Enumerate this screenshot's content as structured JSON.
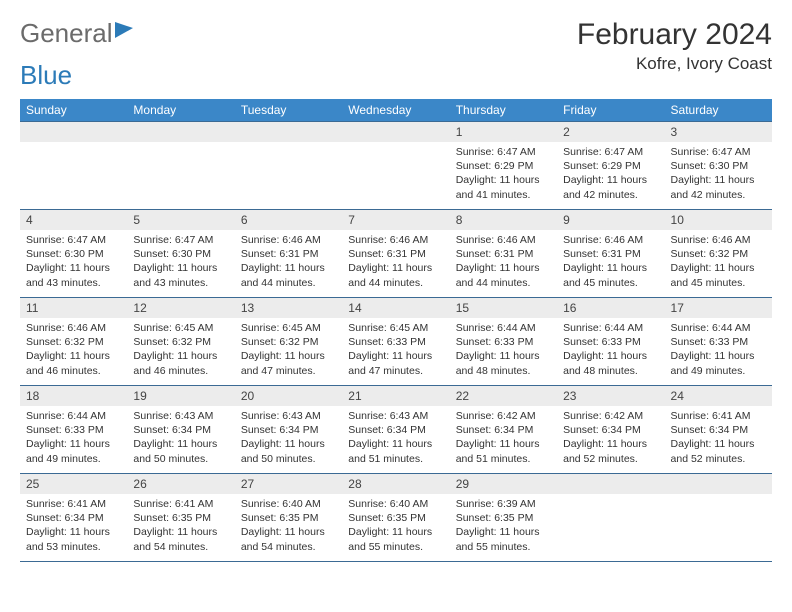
{
  "logo": {
    "word1": "General",
    "word2": "Blue"
  },
  "title": "February 2024",
  "location": "Kofre, Ivory Coast",
  "colors": {
    "header_bg": "#3b87c8",
    "header_text": "#ffffff",
    "border": "#3b6a94",
    "daynum_bg": "#ececec",
    "body_text": "#333333",
    "logo_gray": "#6b6b6b",
    "logo_blue": "#2c7bb8",
    "page_bg": "#ffffff"
  },
  "day_names": [
    "Sunday",
    "Monday",
    "Tuesday",
    "Wednesday",
    "Thursday",
    "Friday",
    "Saturday"
  ],
  "weeks": [
    [
      null,
      null,
      null,
      null,
      {
        "n": "1",
        "sr": "6:47 AM",
        "ss": "6:29 PM",
        "dl": "11 hours and 41 minutes."
      },
      {
        "n": "2",
        "sr": "6:47 AM",
        "ss": "6:29 PM",
        "dl": "11 hours and 42 minutes."
      },
      {
        "n": "3",
        "sr": "6:47 AM",
        "ss": "6:30 PM",
        "dl": "11 hours and 42 minutes."
      }
    ],
    [
      {
        "n": "4",
        "sr": "6:47 AM",
        "ss": "6:30 PM",
        "dl": "11 hours and 43 minutes."
      },
      {
        "n": "5",
        "sr": "6:47 AM",
        "ss": "6:30 PM",
        "dl": "11 hours and 43 minutes."
      },
      {
        "n": "6",
        "sr": "6:46 AM",
        "ss": "6:31 PM",
        "dl": "11 hours and 44 minutes."
      },
      {
        "n": "7",
        "sr": "6:46 AM",
        "ss": "6:31 PM",
        "dl": "11 hours and 44 minutes."
      },
      {
        "n": "8",
        "sr": "6:46 AM",
        "ss": "6:31 PM",
        "dl": "11 hours and 44 minutes."
      },
      {
        "n": "9",
        "sr": "6:46 AM",
        "ss": "6:31 PM",
        "dl": "11 hours and 45 minutes."
      },
      {
        "n": "10",
        "sr": "6:46 AM",
        "ss": "6:32 PM",
        "dl": "11 hours and 45 minutes."
      }
    ],
    [
      {
        "n": "11",
        "sr": "6:46 AM",
        "ss": "6:32 PM",
        "dl": "11 hours and 46 minutes."
      },
      {
        "n": "12",
        "sr": "6:45 AM",
        "ss": "6:32 PM",
        "dl": "11 hours and 46 minutes."
      },
      {
        "n": "13",
        "sr": "6:45 AM",
        "ss": "6:32 PM",
        "dl": "11 hours and 47 minutes."
      },
      {
        "n": "14",
        "sr": "6:45 AM",
        "ss": "6:33 PM",
        "dl": "11 hours and 47 minutes."
      },
      {
        "n": "15",
        "sr": "6:44 AM",
        "ss": "6:33 PM",
        "dl": "11 hours and 48 minutes."
      },
      {
        "n": "16",
        "sr": "6:44 AM",
        "ss": "6:33 PM",
        "dl": "11 hours and 48 minutes."
      },
      {
        "n": "17",
        "sr": "6:44 AM",
        "ss": "6:33 PM",
        "dl": "11 hours and 49 minutes."
      }
    ],
    [
      {
        "n": "18",
        "sr": "6:44 AM",
        "ss": "6:33 PM",
        "dl": "11 hours and 49 minutes."
      },
      {
        "n": "19",
        "sr": "6:43 AM",
        "ss": "6:34 PM",
        "dl": "11 hours and 50 minutes."
      },
      {
        "n": "20",
        "sr": "6:43 AM",
        "ss": "6:34 PM",
        "dl": "11 hours and 50 minutes."
      },
      {
        "n": "21",
        "sr": "6:43 AM",
        "ss": "6:34 PM",
        "dl": "11 hours and 51 minutes."
      },
      {
        "n": "22",
        "sr": "6:42 AM",
        "ss": "6:34 PM",
        "dl": "11 hours and 51 minutes."
      },
      {
        "n": "23",
        "sr": "6:42 AM",
        "ss": "6:34 PM",
        "dl": "11 hours and 52 minutes."
      },
      {
        "n": "24",
        "sr": "6:41 AM",
        "ss": "6:34 PM",
        "dl": "11 hours and 52 minutes."
      }
    ],
    [
      {
        "n": "25",
        "sr": "6:41 AM",
        "ss": "6:34 PM",
        "dl": "11 hours and 53 minutes."
      },
      {
        "n": "26",
        "sr": "6:41 AM",
        "ss": "6:35 PM",
        "dl": "11 hours and 54 minutes."
      },
      {
        "n": "27",
        "sr": "6:40 AM",
        "ss": "6:35 PM",
        "dl": "11 hours and 54 minutes."
      },
      {
        "n": "28",
        "sr": "6:40 AM",
        "ss": "6:35 PM",
        "dl": "11 hours and 55 minutes."
      },
      {
        "n": "29",
        "sr": "6:39 AM",
        "ss": "6:35 PM",
        "dl": "11 hours and 55 minutes."
      },
      null,
      null
    ]
  ],
  "labels": {
    "sunrise": "Sunrise:",
    "sunset": "Sunset:",
    "daylight": "Daylight:"
  }
}
